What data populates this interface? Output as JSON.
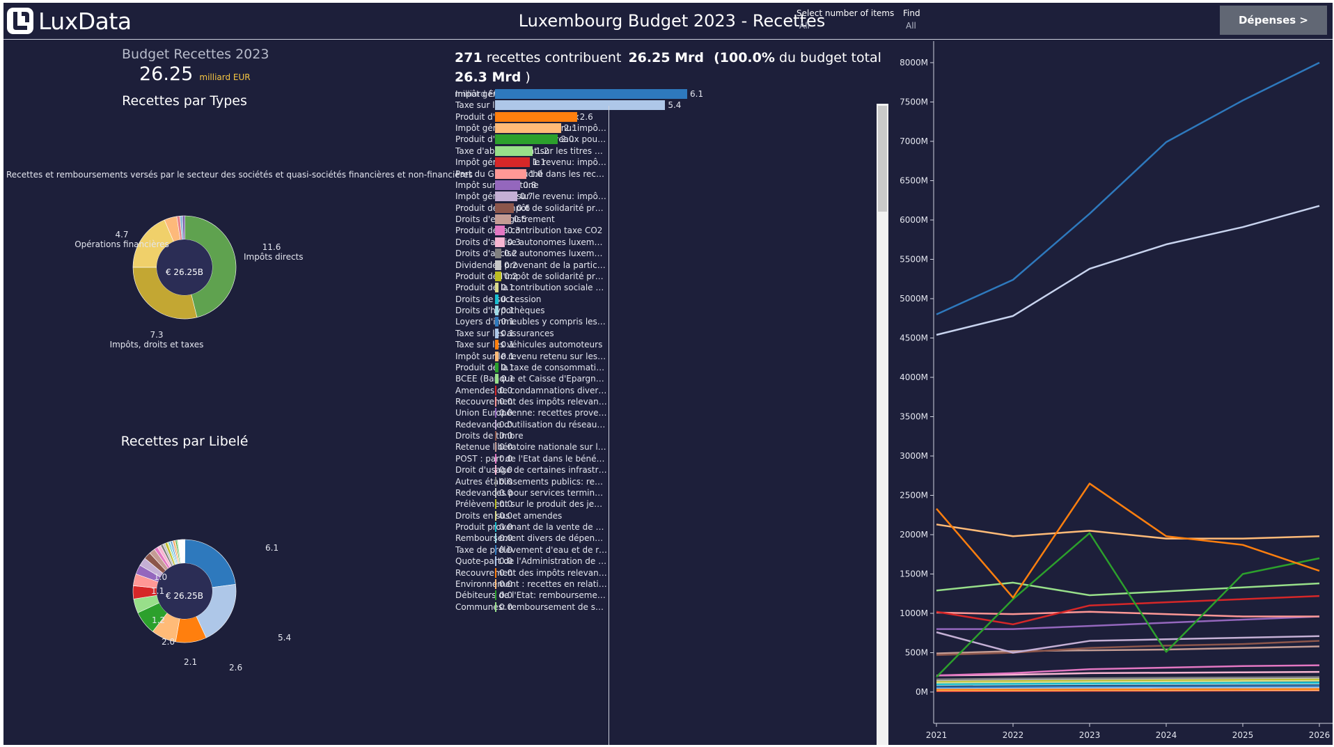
{
  "header": {
    "logo_text": "LuxData",
    "title": "Luxembourg Budget 2023 - Recettes",
    "filter_items": {
      "label": "Select number of items",
      "value": "All"
    },
    "filter_find": {
      "label": "Find",
      "value": "All"
    },
    "depenses_button": "Dépenses >"
  },
  "summary": {
    "title": "Budget Recettes 2023",
    "amount": "26.25",
    "unit": "milliard EUR"
  },
  "types": {
    "title": "Recettes par Types",
    "caption": "Recettes et remboursements versés par le secteur des sociétés et quasi-sociétés financières et non-financières",
    "center": "€ 26.25B",
    "labels": [
      {
        "value": "11.6",
        "name": "Impôts directs"
      },
      {
        "value": "7.3",
        "name": "Impôts, droits et taxes"
      },
      {
        "value": "4.7",
        "name": "Opérations financières"
      }
    ],
    "slices": [
      {
        "name": "Impôts directs",
        "value": 11.6,
        "color": "#5fa24f"
      },
      {
        "name": "Impôts, droits et taxes",
        "value": 7.3,
        "color": "#c3a733"
      },
      {
        "name": "Opérations financières",
        "value": 4.7,
        "color": "#f0d06a"
      },
      {
        "name": "Recettes et remboursements",
        "value": 1.0,
        "color": "#fdb97a"
      },
      {
        "name": "other-1",
        "value": 0.25,
        "color": "#e8848a"
      },
      {
        "name": "other-2",
        "value": 0.2,
        "color": "#8eb6d6"
      },
      {
        "name": "other-3",
        "value": 0.2,
        "color": "#7a5ea8"
      }
    ]
  },
  "libele": {
    "title": "Recettes par Libelé",
    "center": "€ 26.25B",
    "labels": [
      "6.1",
      "5.4",
      "2.6",
      "2.1",
      "2.0",
      "1.2",
      "1.1",
      "1.0"
    ]
  },
  "bars": {
    "headline": {
      "count": "271",
      "t1": " recettes contribuent ",
      "amount": "26.25 Mrd",
      "pct": "(100.0%",
      "t2": " du budget total",
      "total": "26.3 Mrd",
      "t3": " )"
    },
    "unit": "milliard EUR",
    "items": [
      {
        "label": "Impôt général sur le revenu: impôt re..",
        "value": 6.1,
        "text": "6.1",
        "color": "#2e79bd"
      },
      {
        "label": "Taxe sur la valeur ajoutée",
        "value": 5.4,
        "text": "5.4",
        "color": "#aec7e8"
      },
      {
        "label": "Produit d'emprunts nouveaux",
        "value": 2.6,
        "text": "2.6",
        "color": "#ff7f0e"
      },
      {
        "label": "Impôt général sur le revenu: impôt su..",
        "value": 2.1,
        "text": "2.1",
        "color": "#ffbb78"
      },
      {
        "label": "Produit d'emprunts nouveaux pour re..",
        "value": 2.0,
        "text": "2.0",
        "color": "#2ca02c"
      },
      {
        "label": "Taxe d'abonnement sur les titres de s..",
        "value": 1.2,
        "text": "1.2",
        "color": "#98df8a"
      },
      {
        "label": "Impôt général sur le revenu: impôt su..",
        "value": 1.1,
        "text": "1.1",
        "color": "#d62728"
      },
      {
        "label": "Part du Grand-Duché dans les recette..",
        "value": 1.0,
        "text": "1.0",
        "color": "#ff9896"
      },
      {
        "label": "Impôt sur la fortune",
        "value": 0.8,
        "text": "0.8",
        "color": "#9467bd"
      },
      {
        "label": "Impôt général sur le revenu: impôt re..",
        "value": 0.7,
        "text": "0.7",
        "color": "#c5b0d5"
      },
      {
        "label": "Produit de l'impôt de solidarité préle..",
        "value": 0.6,
        "text": "0.6",
        "color": "#8c564b"
      },
      {
        "label": "Droits d'enregistrement",
        "value": 0.5,
        "text": "0.5",
        "color": "#c49c94"
      },
      {
        "label": "Produit de la contribution taxe CO2",
        "value": 0.3,
        "text": "0.3",
        "color": "#e377c2"
      },
      {
        "label": "Droits d'accise autonomes luxembou..",
        "value": 0.3,
        "text": "0.3",
        "color": "#f7b6d2"
      },
      {
        "label": "Droits d'accise autonomes luxembou..",
        "value": 0.2,
        "text": "0.2",
        "color": "#7f7f7f"
      },
      {
        "label": "Dividendes provenant de la participa..",
        "value": 0.2,
        "text": "0.2",
        "color": "#c7c7c7"
      },
      {
        "label": "Produit de l'impôt de solidarité préle..",
        "value": 0.2,
        "text": "0.2",
        "color": "#bcbd22"
      },
      {
        "label": "Produit de la contribution sociale pré..",
        "value": 0.1,
        "text": "0.1",
        "color": "#dbdb8d"
      },
      {
        "label": "Droits de succession",
        "value": 0.1,
        "text": "0.1",
        "color": "#17becf"
      },
      {
        "label": "Droits d'hypothèques",
        "value": 0.1,
        "text": "0.1",
        "color": "#9edae5"
      },
      {
        "label": "Loyers d'immeubles y compris les cha..",
        "value": 0.1,
        "text": "0.1",
        "color": "#2e79bd"
      },
      {
        "label": "Taxe sur les assurances",
        "value": 0.1,
        "text": "0.1",
        "color": "#aec7e8"
      },
      {
        "label": "Taxe sur les véhicules automoteurs",
        "value": 0.1,
        "text": "0.1",
        "color": "#ff7f0e"
      },
      {
        "label": "Impôt sur le revenu retenu sur les tan..",
        "value": 0.1,
        "text": "0.1",
        "color": "#ffbb78"
      },
      {
        "label": "Produit de la taxe de consommation s..",
        "value": 0.1,
        "text": "0.1",
        "color": "#2ca02c"
      },
      {
        "label": "BCEE (Banque et Caisse d'Epargne de..",
        "value": 0.1,
        "text": "0.1",
        "color": "#98df8a"
      },
      {
        "label": "Amendes de condamnations diverses..",
        "value": 0.0,
        "text": "0.0",
        "color": "#d62728"
      },
      {
        "label": "Recouvrement des impôts relevant d..",
        "value": 0.0,
        "text": "0.0",
        "color": "#ff9896"
      },
      {
        "label": "Union Européenne: recettes provena..",
        "value": 0.0,
        "text": "0.0",
        "color": "#9467bd"
      },
      {
        "label": "Redevance d'utilisation du réseau fer..",
        "value": 0.0,
        "text": "0.0",
        "color": "#c5b0d5"
      },
      {
        "label": "Droits de timbre",
        "value": 0.0,
        "text": "0.0",
        "color": "#8c564b"
      },
      {
        "label": "Retenue libératoire nationale sur les ..",
        "value": 0.0,
        "text": "0.0",
        "color": "#c49c94"
      },
      {
        "label": "POST : part de l'Etat dans le bénéfice",
        "value": 0.0,
        "text": "0.0",
        "color": "#e377c2"
      },
      {
        "label": "Droit d'usage de certaines infrastruc..",
        "value": 0.0,
        "text": "0.0",
        "color": "#f7b6d2"
      },
      {
        "label": "Autres établissements publics: remb..",
        "value": 0.0,
        "text": "0.0",
        "color": "#7f7f7f"
      },
      {
        "label": "Redevances pour services terminaux ..",
        "value": 0.0,
        "text": "0.0",
        "color": "#c7c7c7"
      },
      {
        "label": "Prélèvement sur le produit des jeux d..",
        "value": 0.0,
        "text": "0.0",
        "color": "#bcbd22"
      },
      {
        "label": "Droits en sus et amendes",
        "value": 0.0,
        "text": "0.0",
        "color": "#dbdb8d"
      },
      {
        "label": "Produit provenant de la vente de droi..",
        "value": 0.0,
        "text": "0.0",
        "color": "#17becf"
      },
      {
        "label": "Remboursement divers de dépenses ..",
        "value": 0.0,
        "text": "0.0",
        "color": "#9edae5"
      },
      {
        "label": "Taxe de prélèvement d'eau et de reje..",
        "value": 0.0,
        "text": "0.0",
        "color": "#2e79bd"
      },
      {
        "label": "Quote-part de l'Administration de la ..",
        "value": 0.0,
        "text": "0.0",
        "color": "#aec7e8"
      },
      {
        "label": "Recouvrement des impôts relevant d..",
        "value": 0.0,
        "text": "0.0",
        "color": "#ff7f0e"
      },
      {
        "label": "Environnement : recettes en relation ..",
        "value": 0.0,
        "text": "0.0",
        "color": "#ffbb78"
      },
      {
        "label": "Débiteurs de l'Etat: remboursement ..",
        "value": 0.0,
        "text": "0.0",
        "color": "#2ca02c"
      },
      {
        "label": "Communes: remboursement de salair..",
        "value": 0.0,
        "text": "0.0",
        "color": "#98df8a"
      }
    ]
  },
  "chart_data": {
    "type": "line",
    "x": [
      2021,
      2022,
      2023,
      2024,
      2025,
      2026
    ],
    "ylim": [
      0,
      8000
    ],
    "yticks": [
      "0M",
      "500M",
      "1000M",
      "1500M",
      "2000M",
      "2500M",
      "3000M",
      "3500M",
      "4000M",
      "4500M",
      "5000M",
      "5500M",
      "6000M",
      "6500M",
      "7000M",
      "7500M",
      "8000M"
    ],
    "xticks": [
      "2021",
      "2022",
      "2023",
      "2024",
      "2025",
      "2026"
    ],
    "series": [
      {
        "color": "#2e79bd",
        "values": [
          4800,
          5240,
          6080,
          6990,
          7520,
          8000
        ]
      },
      {
        "color": "#c8d3ee",
        "values": [
          4540,
          4780,
          5380,
          5690,
          5910,
          6180
        ]
      },
      {
        "color": "#ff7f0e",
        "values": [
          2330,
          1200,
          2650,
          1980,
          1870,
          1540
        ]
      },
      {
        "color": "#ffbb78",
        "values": [
          2130,
          1980,
          2050,
          1950,
          1950,
          1980
        ]
      },
      {
        "color": "#2ca02c",
        "values": [
          190,
          1180,
          2020,
          510,
          1500,
          1700
        ]
      },
      {
        "color": "#98df8a",
        "values": [
          1290,
          1390,
          1230,
          1280,
          1330,
          1380
        ]
      },
      {
        "color": "#d62728",
        "values": [
          1020,
          860,
          1100,
          1140,
          1180,
          1220
        ]
      },
      {
        "color": "#ff9896",
        "values": [
          1010,
          990,
          1020,
          990,
          960,
          960
        ]
      },
      {
        "color": "#9467bd",
        "values": [
          800,
          800,
          840,
          880,
          920,
          960
        ]
      },
      {
        "color": "#c5b0d5",
        "values": [
          760,
          500,
          650,
          670,
          690,
          710
        ]
      },
      {
        "color": "#8c564b",
        "values": [
          470,
          500,
          560,
          590,
          610,
          650
        ]
      },
      {
        "color": "#c49c94",
        "values": [
          490,
          520,
          530,
          540,
          560,
          580
        ]
      },
      {
        "color": "#e377c2",
        "values": [
          210,
          240,
          290,
          310,
          330,
          340
        ]
      },
      {
        "color": "#f7b6d2",
        "values": [
          210,
          220,
          240,
          245,
          250,
          255
        ]
      },
      {
        "color": "#7f7f7f",
        "values": [
          160,
          170,
          175,
          180,
          185,
          190
        ]
      },
      {
        "color": "#c7c7c7",
        "values": [
          150,
          160,
          165,
          170,
          175,
          180
        ]
      },
      {
        "color": "#bcbd22",
        "values": [
          140,
          145,
          150,
          155,
          160,
          165
        ]
      },
      {
        "color": "#dbdb8d",
        "values": [
          120,
          125,
          130,
          135,
          140,
          145
        ]
      },
      {
        "color": "#17becf",
        "values": [
          100,
          105,
          110,
          115,
          118,
          120
        ]
      },
      {
        "color": "#9edae5",
        "values": [
          90,
          95,
          100,
          102,
          104,
          106
        ]
      },
      {
        "color": "#2e79bd",
        "values": [
          60,
          65,
          70,
          72,
          74,
          76
        ]
      },
      {
        "color": "#aec7e8",
        "values": [
          50,
          52,
          54,
          56,
          58,
          60
        ]
      },
      {
        "color": "#ff7f0e",
        "values": [
          30,
          30,
          32,
          34,
          36,
          38
        ]
      },
      {
        "color": "#ffbb78",
        "values": [
          20,
          20,
          22,
          22,
          24,
          24
        ]
      },
      {
        "color": "#d62728",
        "values": [
          10,
          12,
          14,
          16,
          18,
          20
        ]
      }
    ]
  }
}
